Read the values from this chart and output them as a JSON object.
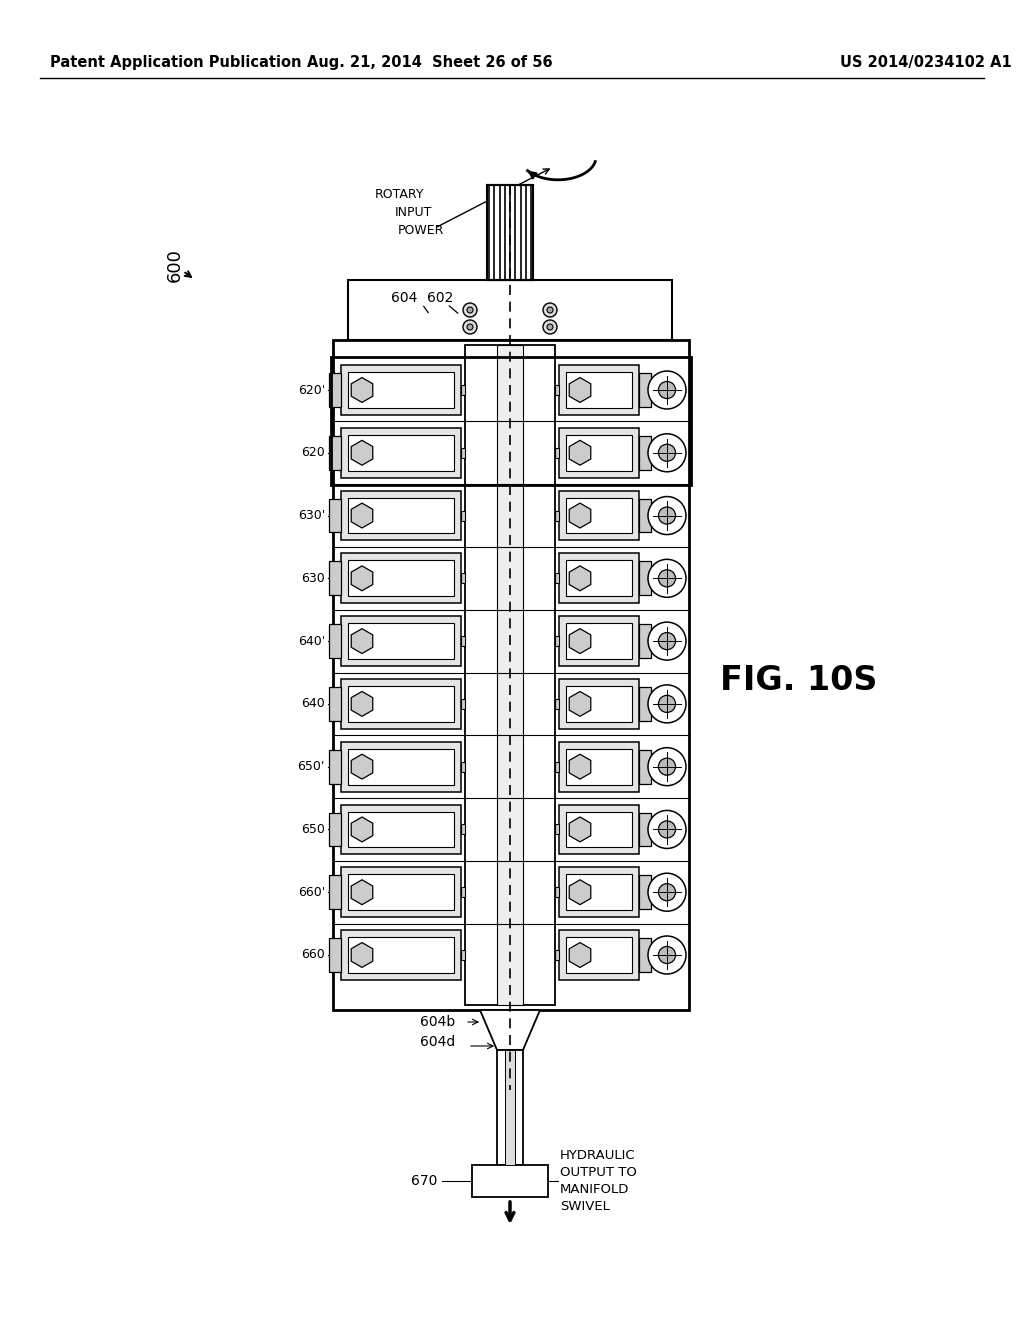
{
  "header_left": "Patent Application Publication",
  "header_center": "Aug. 21, 2014  Sheet 26 of 56",
  "header_right": "US 2014/0234102 A1",
  "fig_label": "FIG. 10S",
  "device_label": "600",
  "background_color": "#ffffff",
  "text_color": "#000000",
  "line_color": "#000000",
  "header_fontsize": 10.5,
  "fig_label_fontsize": 24,
  "top_label": "ROTARY\nINPUT\nPOWER",
  "bottom_label": "HYDRAULIC\nOUTPUT TO\nMANIFOLD\nSWIVEL",
  "module_labels": [
    "620'",
    "620",
    "630'",
    "630",
    "640'",
    "640",
    "650'",
    "650",
    "660'",
    "660"
  ]
}
